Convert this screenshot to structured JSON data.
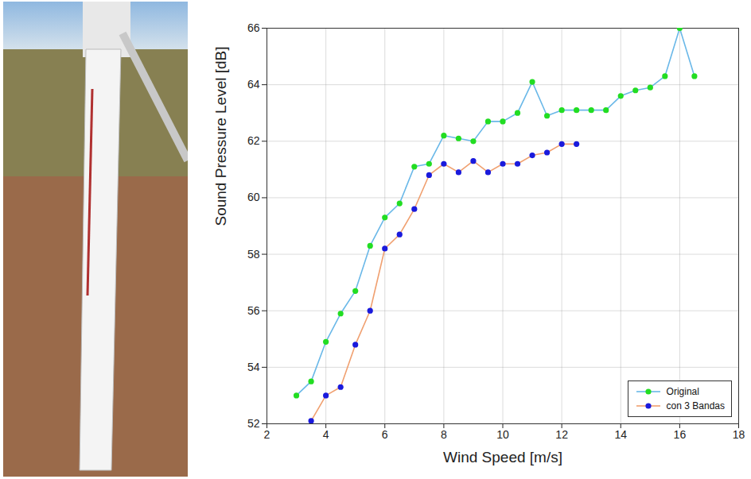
{
  "chart_data": {
    "type": "line",
    "xlabel": "Wind Speed [m/s]",
    "ylabel": "Sound Pressure Level [dB]",
    "xlim": [
      2,
      18
    ],
    "xticks": [
      2,
      4,
      6,
      8,
      10,
      12,
      14,
      16,
      18
    ],
    "ylim": [
      52,
      66
    ],
    "yticks": [
      52,
      54,
      56,
      58,
      60,
      62,
      64,
      66
    ],
    "grid": true,
    "legend": "lower right",
    "series": [
      {
        "name": "Original",
        "color": "#6ab8e8",
        "marker": "circle",
        "x": [
          3,
          3.5,
          4,
          4.5,
          5,
          5.5,
          6,
          6.5,
          7,
          7.5,
          8,
          8.5,
          9,
          9.5,
          10,
          10.5,
          11,
          11.5,
          12,
          12.5,
          13,
          13.5,
          14,
          14.5,
          15,
          15.5,
          16,
          16.5
        ],
        "values": [
          53.0,
          53.5,
          54.9,
          55.9,
          56.7,
          58.3,
          59.3,
          59.8,
          61.1,
          61.2,
          62.2,
          62.1,
          62.0,
          62.7,
          62.7,
          63.0,
          64.1,
          62.9,
          63.1,
          63.1,
          63.1,
          63.1,
          63.6,
          63.8,
          63.9,
          64.3,
          66.0,
          64.3
        ]
      },
      {
        "name": "con 3 Bandas",
        "color": "#f0a070",
        "marker": "circle",
        "x": [
          3.5,
          4,
          4.5,
          5,
          5.5,
          6,
          6.5,
          7,
          7.5,
          8,
          8.5,
          9,
          9.5,
          10,
          10.5,
          11,
          11.5,
          12,
          12.5
        ],
        "values": [
          52.1,
          53.0,
          53.3,
          54.8,
          56.0,
          58.2,
          58.7,
          59.6,
          60.8,
          61.2,
          60.9,
          61.3,
          60.9,
          61.2,
          61.2,
          61.5,
          61.6,
          61.9,
          61.9
        ]
      }
    ]
  }
}
